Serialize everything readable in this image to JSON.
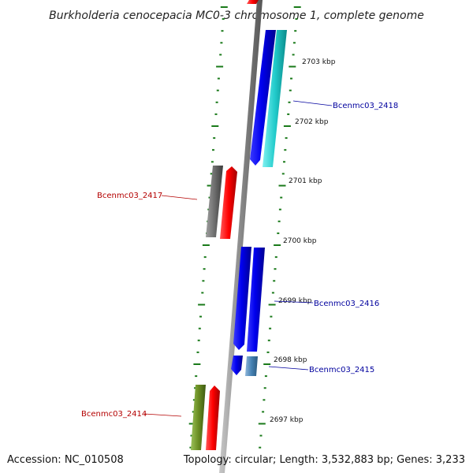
{
  "title": "Burkholderia cenocepacia MC0-3 chromosome 1, complete genome",
  "accession": "Accession: NC_010508",
  "topology": "Topology: circular; Length: 3,532,883 bp; Genes: 3,233",
  "scale_labels": [
    "2703 kbp",
    "2702 kbp",
    "2701 kbp",
    "2700 kbp",
    "2699 kbp",
    "2698 kbp",
    "2697 kbp"
  ],
  "gene_labels": [
    {
      "name": "Bcenmc03_2418",
      "color": "#00009e"
    },
    {
      "name": "Bcenmc03_2417",
      "color": "#b40000"
    },
    {
      "name": "Bcenmc03_2416",
      "color": "#00009e"
    },
    {
      "name": "Bcenmc03_2415",
      "color": "#00009e"
    },
    {
      "name": "Bcenmc03_2414",
      "color": "#b40000"
    }
  ],
  "colors": {
    "backbone": "#8c8c8c",
    "tick": "#1a7a1a",
    "blue": "#0000f0",
    "cyan": "#1ec8c8",
    "red": "#ff0000",
    "gray": "#6e6e6e",
    "steel": "#4682b4",
    "olive": "#6b8e23"
  }
}
